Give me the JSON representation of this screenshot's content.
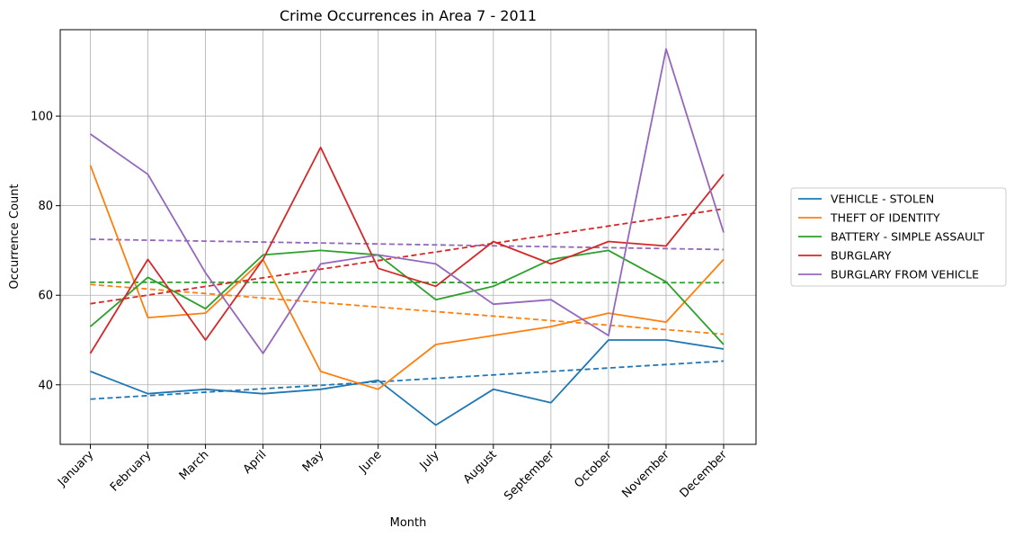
{
  "chart_data": {
    "type": "line",
    "title": "Crime Occurrences in Area 7 - 2011",
    "xlabel": "Month",
    "ylabel": "Occurrence Count",
    "categories": [
      "January",
      "February",
      "March",
      "April",
      "May",
      "June",
      "July",
      "August",
      "September",
      "October",
      "November",
      "December"
    ],
    "ylim": [
      26.7,
      119.3
    ],
    "yticks": [
      40,
      60,
      80,
      100
    ],
    "grid": true,
    "legend_position": "right-outside",
    "series": [
      {
        "name": "VEHICLE - STOLEN",
        "color": "#1f77b4",
        "values": [
          43,
          38,
          39,
          38,
          39,
          41,
          31,
          39,
          36,
          50,
          50,
          48
        ],
        "trend": [
          36.8,
          45.3
        ]
      },
      {
        "name": "THEFT OF IDENTITY",
        "color": "#ff7f0e",
        "values": [
          89,
          55,
          56,
          68,
          43,
          39,
          49,
          51,
          53,
          56,
          54,
          68
        ],
        "trend": [
          62.4,
          51.3
        ]
      },
      {
        "name": "BATTERY - SIMPLE ASSAULT",
        "color": "#2ca02c",
        "values": [
          53,
          64,
          57,
          69,
          70,
          69,
          59,
          62,
          68,
          70,
          63,
          49
        ],
        "trend": [
          62.9,
          62.8
        ]
      },
      {
        "name": "BURGLARY",
        "color": "#d62728",
        "values": [
          47,
          68,
          50,
          68,
          93,
          66,
          62,
          72,
          67,
          72,
          71,
          87
        ],
        "trend": [
          58.1,
          79.3
        ]
      },
      {
        "name": "BURGLARY FROM VEHICLE",
        "color": "#9467bd",
        "values": [
          96,
          87,
          65,
          47,
          67,
          69,
          67,
          58,
          59,
          51,
          115,
          74
        ],
        "trend": [
          72.5,
          70.2
        ]
      }
    ]
  }
}
